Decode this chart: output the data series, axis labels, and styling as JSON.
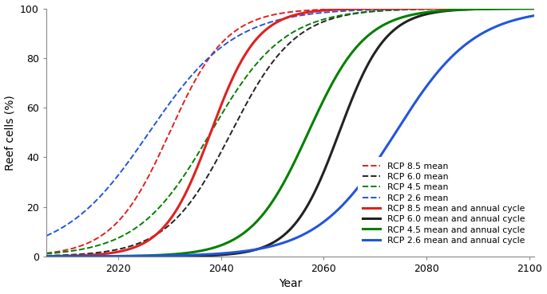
{
  "ylabel": "Reef cells (%)",
  "xlabel": "Year",
  "xlim": [
    2006,
    2101
  ],
  "ylim": [
    0,
    100
  ],
  "xticks": [
    2020,
    2040,
    2060,
    2080,
    2100
  ],
  "yticks": [
    0,
    20,
    40,
    60,
    80,
    100
  ],
  "series": [
    {
      "label": "RCP 8.5 mean",
      "color": "#e02020",
      "lw": 1.4,
      "ls": "dashed",
      "x0": 2030,
      "k": 0.18
    },
    {
      "label": "RCP 6.0 mean",
      "color": "#222222",
      "lw": 1.4,
      "ls": "dashed",
      "x0": 2042,
      "k": 0.16
    },
    {
      "label": "RCP 4.5 mean",
      "color": "#008000",
      "lw": 1.4,
      "ls": "dashed",
      "x0": 2038,
      "k": 0.14
    },
    {
      "label": "RCP 2.6 mean",
      "color": "#2255dd",
      "lw": 1.4,
      "ls": "dashed",
      "x0": 2026,
      "k": 0.12
    },
    {
      "label": "RCP 8.5 mean and annual cycle",
      "color": "#e02020",
      "lw": 2.2,
      "ls": "solid",
      "x0": 2038,
      "k": 0.22
    },
    {
      "label": "RCP 6.0 mean and annual cycle",
      "color": "#222222",
      "lw": 2.2,
      "ls": "solid",
      "x0": 2063,
      "k": 0.22
    },
    {
      "label": "RCP 4.5 mean and annual cycle",
      "color": "#008000",
      "lw": 2.2,
      "ls": "solid",
      "x0": 2057,
      "k": 0.18
    },
    {
      "label": "RCP 2.6 mean and annual cycle",
      "color": "#2255dd",
      "lw": 2.2,
      "ls": "solid",
      "x0": 2074,
      "k": 0.13
    }
  ],
  "background_color": "#ffffff",
  "legend_fontsize": 7.8,
  "axis_fontsize": 10,
  "tick_fontsize": 9
}
